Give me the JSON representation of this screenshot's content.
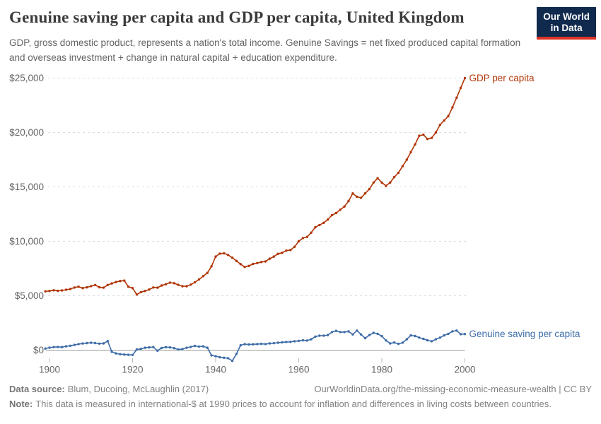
{
  "header": {
    "title": "Genuine saving per capita and GDP per capita, United Kingdom",
    "subtitle": "GDP, gross domestic product, represents a nation's total income. Genuine Savings = net fixed produced capital formation and overseas investment + change in natural capital + education expenditure."
  },
  "logo": {
    "line1": "Our World",
    "line2": "in Data"
  },
  "colors": {
    "gdp_series": "#B13507",
    "saving_series": "#3D6CA8",
    "gridline": "#dcdcdc",
    "zero_line": "#9a9a9a",
    "axis_text": "#666666",
    "title_text": "#3b3b3b",
    "logo_navy": "#102a4e",
    "logo_red": "#dc3327"
  },
  "chart_data": {
    "type": "line",
    "title": "Genuine saving per capita and GDP per capita, United Kingdom",
    "xlabel": "",
    "ylabel": "",
    "grid": "horizontal-dashed",
    "legend_position": "line-end-labels",
    "xlim": [
      1899,
      2003
    ],
    "ylim": [
      -1100,
      25000
    ],
    "x_ticks": [
      1900,
      1920,
      1940,
      1960,
      1980,
      2000
    ],
    "y_ticks": [
      0,
      5000,
      10000,
      15000,
      20000,
      25000
    ],
    "y_tick_labels": [
      "$0",
      "$5,000",
      "$10,000",
      "$15,000",
      "$20,000",
      "$25,000"
    ],
    "x": [
      1899,
      1900,
      1901,
      1902,
      1903,
      1904,
      1905,
      1906,
      1907,
      1908,
      1909,
      1910,
      1911,
      1912,
      1913,
      1914,
      1915,
      1916,
      1917,
      1918,
      1919,
      1920,
      1921,
      1922,
      1923,
      1924,
      1925,
      1926,
      1927,
      1928,
      1929,
      1930,
      1931,
      1932,
      1933,
      1934,
      1935,
      1936,
      1937,
      1938,
      1939,
      1940,
      1941,
      1942,
      1943,
      1944,
      1945,
      1946,
      1947,
      1948,
      1949,
      1950,
      1951,
      1952,
      1953,
      1954,
      1955,
      1956,
      1957,
      1958,
      1959,
      1960,
      1961,
      1962,
      1963,
      1964,
      1965,
      1966,
      1967,
      1968,
      1969,
      1970,
      1971,
      1972,
      1973,
      1974,
      1975,
      1976,
      1977,
      1978,
      1979,
      1980,
      1981,
      1982,
      1983,
      1984,
      1985,
      1986,
      1987,
      1988,
      1989,
      1990,
      1991,
      1992,
      1993,
      1994,
      1995,
      1996,
      1997,
      1998,
      1999,
      2000
    ],
    "series": [
      {
        "name": "GDP per capita",
        "color": "#B13507",
        "values": [
          5400,
          5440,
          5500,
          5450,
          5490,
          5550,
          5620,
          5750,
          5830,
          5700,
          5770,
          5880,
          5990,
          5780,
          5740,
          5990,
          6130,
          6260,
          6350,
          6390,
          5830,
          5700,
          5110,
          5330,
          5440,
          5570,
          5760,
          5740,
          5940,
          6060,
          6200,
          6150,
          6000,
          5870,
          5870,
          6020,
          6240,
          6500,
          6800,
          7100,
          7700,
          8600,
          8870,
          8900,
          8750,
          8500,
          8200,
          7900,
          7640,
          7740,
          7920,
          8000,
          8100,
          8150,
          8400,
          8600,
          8850,
          8950,
          9150,
          9200,
          9500,
          10000,
          10300,
          10400,
          10800,
          11300,
          11500,
          11700,
          12000,
          12400,
          12600,
          12900,
          13200,
          13700,
          14400,
          14100,
          14000,
          14400,
          14800,
          15400,
          15800,
          15400,
          15100,
          15400,
          15900,
          16300,
          16900,
          17500,
          18200,
          18900,
          19700,
          19800,
          19400,
          19500,
          20000,
          20700,
          21100,
          21500,
          22300,
          23200,
          24100,
          25000
        ]
      },
      {
        "name": "Genuine saving per capita",
        "color": "#3D6CA8",
        "values": [
          150,
          230,
          280,
          300,
          280,
          350,
          400,
          480,
          560,
          610,
          650,
          680,
          650,
          600,
          620,
          830,
          -150,
          -300,
          -370,
          -400,
          -430,
          -440,
          60,
          120,
          220,
          250,
          280,
          -50,
          200,
          280,
          250,
          180,
          60,
          100,
          220,
          300,
          390,
          330,
          350,
          220,
          -480,
          -560,
          -650,
          -700,
          -740,
          -980,
          -350,
          450,
          550,
          520,
          540,
          560,
          580,
          560,
          620,
          640,
          680,
          720,
          750,
          760,
          820,
          850,
          900,
          880,
          1000,
          1250,
          1330,
          1330,
          1380,
          1660,
          1770,
          1660,
          1660,
          1720,
          1440,
          1800,
          1440,
          1100,
          1380,
          1590,
          1500,
          1290,
          890,
          620,
          700,
          580,
          690,
          1000,
          1360,
          1300,
          1150,
          1040,
          900,
          820,
          1000,
          1150,
          1360,
          1500,
          1730,
          1800,
          1470,
          1480
        ]
      }
    ]
  },
  "footer": {
    "datasource_label": "Data source:",
    "datasource": "Blum, Ducoing, McLaughlin (2017)",
    "url": "OurWorldinData.org/the-missing-economic-measure-wealth | CC BY",
    "note_label": "Note:",
    "note": "This data is measured in international-$ at 1990 prices to account for inflation and differences in living costs between countries."
  }
}
